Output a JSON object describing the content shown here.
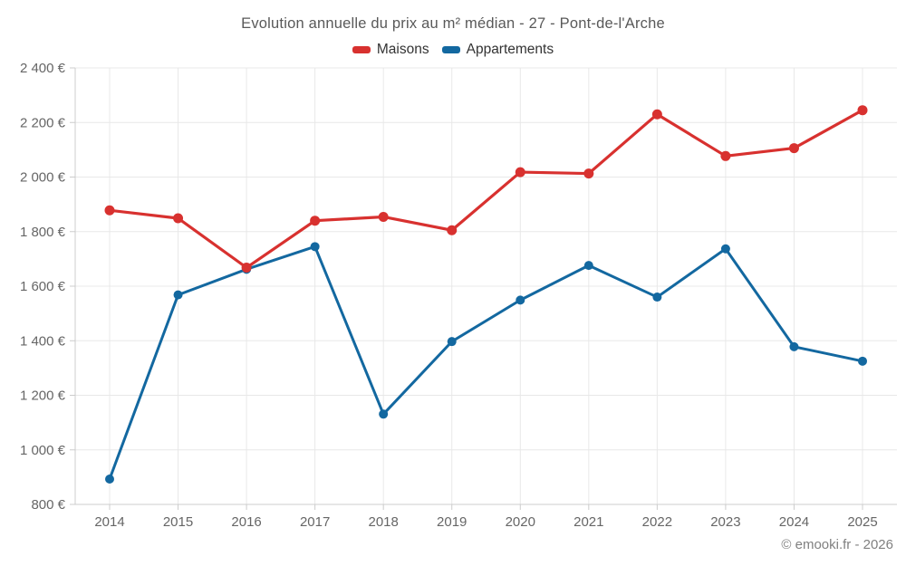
{
  "header": {
    "title": "Evolution annuelle du prix au m² médian - 27 - Pont-de-l'Arche"
  },
  "footer": {
    "copyright": "© emooki.fr - 2026"
  },
  "colors": {
    "maisons": "#d8312f",
    "appartements": "#1368a0",
    "gridline": "#e8e8e8",
    "axis": "#cccccc",
    "tick_label": "#666666",
    "title_text": "#595959",
    "copyright_text": "#808080"
  },
  "chart_data": {
    "type": "line",
    "title": "Evolution annuelle du prix au m² médian - 27 - Pont-de-l'Arche",
    "xlabel": "",
    "ylabel": "",
    "categories": [
      "2014",
      "2015",
      "2016",
      "2017",
      "2018",
      "2019",
      "2020",
      "2021",
      "2022",
      "2023",
      "2024",
      "2025"
    ],
    "series": [
      {
        "name": "Maisons",
        "color": "#d8312f",
        "values": [
          1878,
          1849,
          1668,
          1840,
          1854,
          1805,
          2018,
          2013,
          2230,
          2077,
          2106,
          2245
        ]
      },
      {
        "name": "Appartements",
        "color": "#1368a0",
        "values": [
          893,
          1568,
          1662,
          1745,
          1131,
          1397,
          1549,
          1676,
          1560,
          1737,
          1378,
          1325
        ]
      }
    ],
    "ylim": [
      800,
      2400
    ],
    "ytick_values": [
      800,
      1000,
      1200,
      1400,
      1600,
      1800,
      2000,
      2200,
      2400
    ],
    "ytick_labels": [
      "800 €",
      "1 000 €",
      "1 200 €",
      "1 400 €",
      "1 600 €",
      "1 800 €",
      "2 000 €",
      "2 200 €",
      "2 400 €"
    ],
    "grid": true,
    "legend_position": "top",
    "marker": "circle",
    "currency": "€"
  }
}
